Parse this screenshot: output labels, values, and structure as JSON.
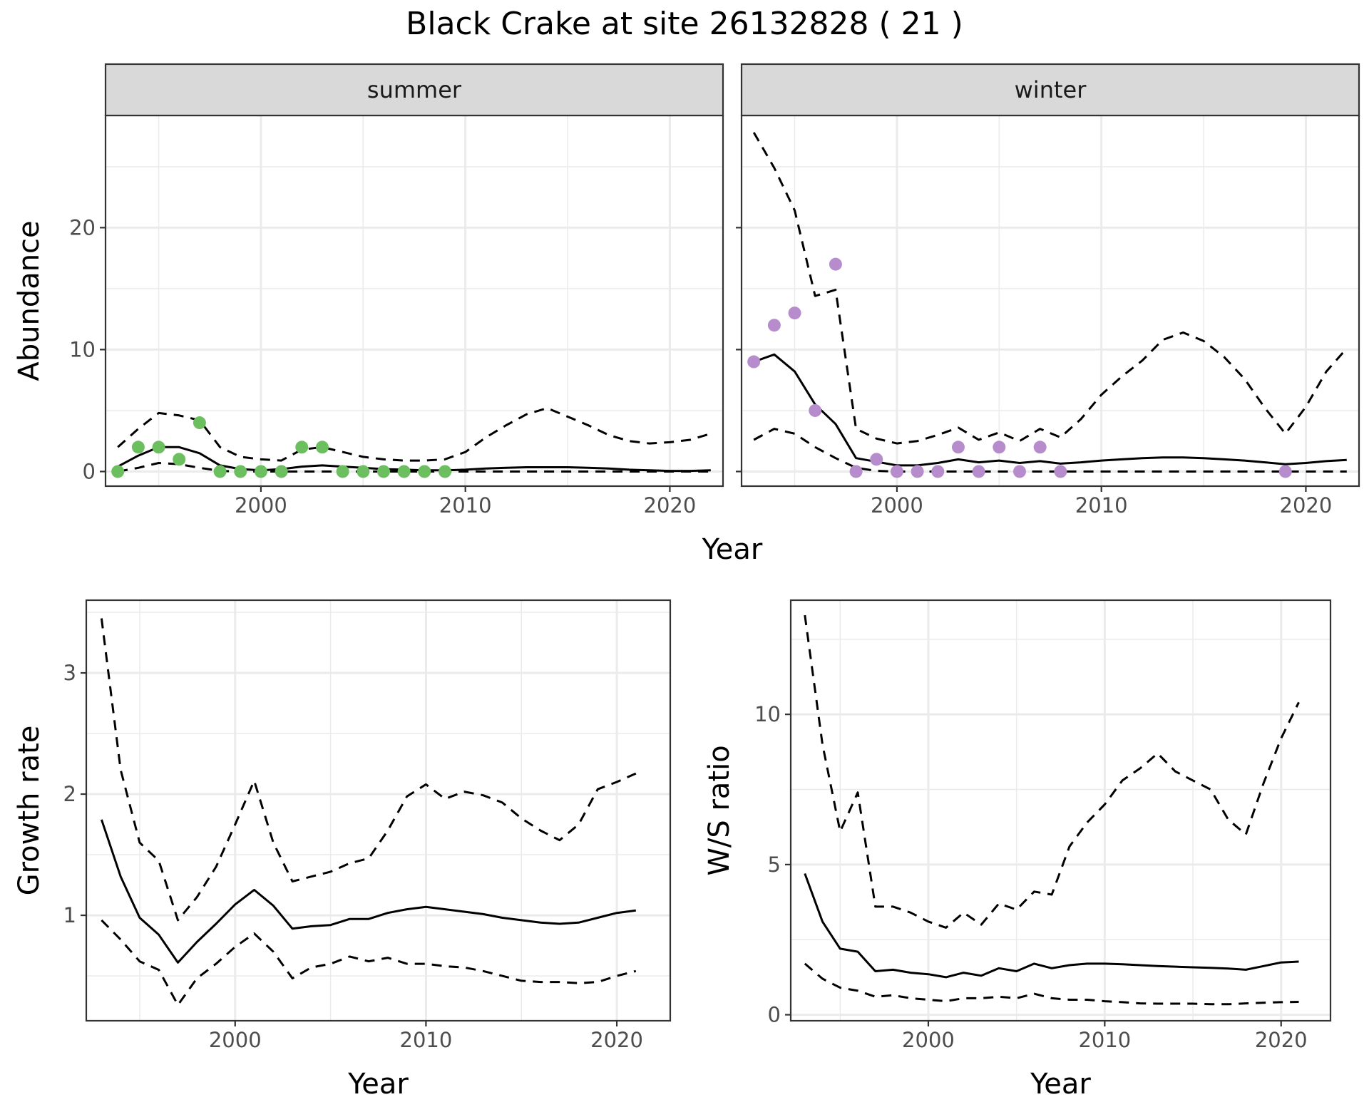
{
  "title": "Black Crake at site 26132828 ( 21 )",
  "colors": {
    "summer": "#6cbf5e",
    "winter": "#b68ccd",
    "line": "#000000"
  },
  "chart_data": [
    {
      "type": "line",
      "panel": "summer",
      "strip_label": "summer",
      "xlabel": "Year",
      "ylabel": "Abundance",
      "xlim": [
        1992.4,
        2022.6
      ],
      "ylim": [
        -1.2,
        29.2
      ],
      "xticks": [
        2000,
        2010,
        2020
      ],
      "yticks": [
        0,
        10,
        20
      ],
      "point_color": "summer",
      "points": {
        "x": [
          1993,
          1994,
          1995,
          1996,
          1997,
          1998,
          1999,
          2000,
          2001,
          2002,
          2003,
          2004,
          2005,
          2006,
          2007,
          2008,
          2009
        ],
        "y": [
          0,
          2,
          2,
          1,
          4,
          0,
          0,
          0,
          0,
          2,
          2,
          0,
          0,
          0,
          0,
          0,
          0
        ]
      },
      "series": [
        {
          "x": [
            1993,
            1994,
            1995,
            1996,
            1997,
            1998,
            1999,
            2000,
            2001,
            2002,
            2003,
            2004,
            2005,
            2006,
            2007,
            2008,
            2009,
            2010,
            2011,
            2012,
            2013,
            2014,
            2015,
            2016,
            2017,
            2018,
            2019,
            2020,
            2021,
            2022
          ],
          "values": [
            0.4,
            1.3,
            2.0,
            2.0,
            1.5,
            0.5,
            0.2,
            0.1,
            0.2,
            0.4,
            0.5,
            0.4,
            0.3,
            0.2,
            0.15,
            0.1,
            0.1,
            0.15,
            0.25,
            0.3,
            0.35,
            0.35,
            0.35,
            0.3,
            0.25,
            0.15,
            0.1,
            0.05,
            0.05,
            0.1
          ]
        },
        {
          "x": [
            1993,
            1994,
            1995,
            1996,
            1997,
            1998,
            1999,
            2000,
            2001,
            2002,
            2003,
            2004,
            2005,
            2006,
            2007,
            2008,
            2009,
            2010,
            2011,
            2012,
            2013,
            2014,
            2015,
            2016,
            2017,
            2018,
            2019,
            2020,
            2021,
            2022
          ],
          "values": [
            2.0,
            3.5,
            4.8,
            4.6,
            4.2,
            2.0,
            1.2,
            1.0,
            0.9,
            1.8,
            2.0,
            1.6,
            1.2,
            1.0,
            0.9,
            0.9,
            1.0,
            1.6,
            2.8,
            3.8,
            4.7,
            5.2,
            4.5,
            3.8,
            3.0,
            2.5,
            2.3,
            2.4,
            2.6,
            3.1
          ]
        },
        {
          "x": [
            1993,
            1994,
            1995,
            1996,
            1997,
            1998,
            1999,
            2000,
            2001,
            2002,
            2003,
            2004,
            2005,
            2006,
            2007,
            2008,
            2009,
            2010,
            2011,
            2012,
            2013,
            2014,
            2015,
            2016,
            2017,
            2018,
            2019,
            2020,
            2021,
            2022
          ],
          "values": [
            0,
            0.3,
            0.7,
            0.6,
            0.3,
            0.05,
            0,
            0,
            0,
            0,
            0,
            0,
            0,
            0,
            0,
            0,
            0,
            0,
            0,
            0,
            0,
            0,
            0,
            0,
            0,
            0,
            0,
            0,
            0,
            0
          ]
        }
      ]
    },
    {
      "type": "line",
      "panel": "winter",
      "strip_label": "winter",
      "xlabel": "Year",
      "ylabel": "",
      "xlim": [
        1992.4,
        2022.6
      ],
      "ylim": [
        -1.2,
        29.2
      ],
      "xticks": [
        2000,
        2010,
        2020
      ],
      "yticks": [
        0,
        10,
        20
      ],
      "point_color": "winter",
      "points": {
        "x": [
          1993,
          1994,
          1995,
          1996,
          1997,
          1998,
          1999,
          2000,
          2001,
          2002,
          2003,
          2004,
          2005,
          2006,
          2007,
          2008,
          2019
        ],
        "y": [
          9,
          12,
          13,
          5,
          17,
          0,
          1,
          0,
          0,
          0,
          2,
          0,
          2,
          0,
          2,
          0,
          0
        ]
      },
      "series": [
        {
          "x": [
            1993,
            1994,
            1995,
            1996,
            1997,
            1998,
            1999,
            2000,
            2001,
            2002,
            2003,
            2004,
            2005,
            2006,
            2007,
            2008,
            2009,
            2010,
            2011,
            2012,
            2013,
            2014,
            2015,
            2016,
            2017,
            2018,
            2019,
            2020,
            2021,
            2022
          ],
          "values": [
            9.0,
            9.6,
            8.2,
            5.5,
            3.9,
            1.1,
            0.8,
            0.5,
            0.5,
            0.7,
            1.0,
            0.75,
            0.9,
            0.7,
            0.85,
            0.65,
            0.75,
            0.9,
            1.0,
            1.1,
            1.15,
            1.15,
            1.1,
            1.0,
            0.9,
            0.75,
            0.6,
            0.7,
            0.85,
            0.95
          ]
        },
        {
          "x": [
            1993,
            1994,
            1995,
            1996,
            1997,
            1998,
            1999,
            2000,
            2001,
            2002,
            2003,
            2004,
            2005,
            2006,
            2007,
            2008,
            2009,
            2010,
            2011,
            2012,
            2013,
            2014,
            2015,
            2016,
            2017,
            2018,
            2019,
            2020,
            2021,
            2022
          ],
          "values": [
            27.8,
            24.9,
            21.4,
            14.4,
            14.9,
            3.5,
            2.7,
            2.3,
            2.5,
            3.0,
            3.6,
            2.6,
            3.2,
            2.5,
            3.5,
            2.8,
            4.3,
            6.3,
            7.8,
            9.1,
            10.8,
            11.4,
            10.7,
            9.4,
            7.6,
            5.2,
            3.1,
            5.3,
            8.2,
            10.1
          ]
        },
        {
          "x": [
            1993,
            1994,
            1995,
            1996,
            1997,
            1998,
            1999,
            2000,
            2001,
            2002,
            2003,
            2004,
            2005,
            2006,
            2007,
            2008,
            2009,
            2010,
            2011,
            2012,
            2013,
            2014,
            2015,
            2016,
            2017,
            2018,
            2019,
            2020,
            2021,
            2022
          ],
          "values": [
            2.6,
            3.5,
            3.1,
            2.0,
            1.1,
            0.3,
            0.05,
            0,
            0,
            0,
            0,
            0,
            0,
            0,
            0,
            0,
            0,
            0,
            0,
            0,
            0,
            0,
            0,
            0,
            0,
            0,
            0,
            0,
            0,
            0
          ]
        }
      ]
    },
    {
      "type": "line",
      "panel": "growth",
      "xlabel": "Year",
      "ylabel": "Growth rate",
      "xlim": [
        1992.2,
        2022.8
      ],
      "ylim": [
        0.13,
        3.6
      ],
      "xticks": [
        2000,
        2010,
        2020
      ],
      "yticks": [
        1,
        2,
        3
      ],
      "series": [
        {
          "x": [
            1993,
            1994,
            1995,
            1996,
            1997,
            1998,
            1999,
            2000,
            2001,
            2002,
            2003,
            2004,
            2005,
            2006,
            2007,
            2008,
            2009,
            2010,
            2011,
            2012,
            2013,
            2014,
            2015,
            2016,
            2017,
            2018,
            2019,
            2020,
            2021
          ],
          "values": [
            1.79,
            1.32,
            0.98,
            0.84,
            0.61,
            0.78,
            0.93,
            1.09,
            1.21,
            1.08,
            0.89,
            0.91,
            0.92,
            0.97,
            0.97,
            1.02,
            1.05,
            1.07,
            1.05,
            1.03,
            1.01,
            0.98,
            0.96,
            0.94,
            0.93,
            0.94,
            0.98,
            1.02,
            1.04
          ]
        },
        {
          "x": [
            1993,
            1994,
            1995,
            1996,
            1997,
            1998,
            1999,
            2000,
            2001,
            2002,
            2003,
            2004,
            2005,
            2006,
            2007,
            2008,
            2009,
            2010,
            2011,
            2012,
            2013,
            2014,
            2015,
            2016,
            2017,
            2018,
            2019,
            2020,
            2021
          ],
          "values": [
            3.45,
            2.2,
            1.6,
            1.45,
            0.96,
            1.15,
            1.4,
            1.75,
            2.11,
            1.6,
            1.28,
            1.32,
            1.36,
            1.43,
            1.47,
            1.7,
            1.98,
            2.08,
            1.96,
            2.02,
            1.99,
            1.93,
            1.8,
            1.7,
            1.62,
            1.75,
            2.04,
            2.1,
            2.17
          ]
        },
        {
          "x": [
            1993,
            1994,
            1995,
            1996,
            1997,
            1998,
            1999,
            2000,
            2001,
            2002,
            2003,
            2004,
            2005,
            2006,
            2007,
            2008,
            2009,
            2010,
            2011,
            2012,
            2013,
            2014,
            2015,
            2016,
            2017,
            2018,
            2019,
            2020,
            2021
          ],
          "values": [
            0.96,
            0.8,
            0.62,
            0.55,
            0.26,
            0.48,
            0.6,
            0.74,
            0.85,
            0.7,
            0.48,
            0.57,
            0.6,
            0.66,
            0.62,
            0.65,
            0.6,
            0.6,
            0.58,
            0.57,
            0.54,
            0.5,
            0.46,
            0.45,
            0.45,
            0.44,
            0.45,
            0.5,
            0.54
          ]
        }
      ]
    },
    {
      "type": "line",
      "panel": "ratio",
      "xlabel": "Year",
      "ylabel": "W/S ratio",
      "xlim": [
        1992.2,
        2022.8
      ],
      "ylim": [
        -0.2,
        13.8
      ],
      "xticks": [
        2000,
        2010,
        2020
      ],
      "yticks": [
        0,
        5,
        10
      ],
      "series": [
        {
          "x": [
            1993,
            1994,
            1995,
            1996,
            1997,
            1998,
            1999,
            2000,
            2001,
            2002,
            2003,
            2004,
            2005,
            2006,
            2007,
            2008,
            2009,
            2010,
            2011,
            2012,
            2013,
            2014,
            2015,
            2016,
            2017,
            2018,
            2019,
            2020,
            2021
          ],
          "values": [
            4.7,
            3.1,
            2.2,
            2.1,
            1.45,
            1.5,
            1.4,
            1.35,
            1.25,
            1.4,
            1.3,
            1.55,
            1.45,
            1.7,
            1.55,
            1.65,
            1.7,
            1.7,
            1.68,
            1.65,
            1.62,
            1.6,
            1.58,
            1.56,
            1.54,
            1.5,
            1.62,
            1.74,
            1.77
          ]
        },
        {
          "x": [
            1993,
            1994,
            1995,
            1996,
            1997,
            1998,
            1999,
            2000,
            2001,
            2002,
            2003,
            2004,
            2005,
            2006,
            2007,
            2008,
            2009,
            2010,
            2011,
            2012,
            2013,
            2014,
            2015,
            2016,
            2017,
            2018,
            2019,
            2020,
            2021
          ],
          "values": [
            13.3,
            9.0,
            6.1,
            7.4,
            3.6,
            3.6,
            3.4,
            3.1,
            2.9,
            3.4,
            3.0,
            3.7,
            3.5,
            4.1,
            4.0,
            5.6,
            6.4,
            7.0,
            7.8,
            8.2,
            8.7,
            8.1,
            7.8,
            7.5,
            6.5,
            6.0,
            7.7,
            9.2,
            10.4
          ]
        },
        {
          "x": [
            1993,
            1994,
            1995,
            1996,
            1997,
            1998,
            1999,
            2000,
            2001,
            2002,
            2003,
            2004,
            2005,
            2006,
            2007,
            2008,
            2009,
            2010,
            2011,
            2012,
            2013,
            2014,
            2015,
            2016,
            2017,
            2018,
            2019,
            2020,
            2021
          ],
          "values": [
            1.7,
            1.2,
            0.9,
            0.8,
            0.6,
            0.65,
            0.55,
            0.5,
            0.45,
            0.55,
            0.55,
            0.6,
            0.55,
            0.7,
            0.55,
            0.5,
            0.5,
            0.45,
            0.42,
            0.38,
            0.37,
            0.37,
            0.37,
            0.35,
            0.35,
            0.38,
            0.4,
            0.42,
            0.43
          ]
        }
      ]
    }
  ]
}
